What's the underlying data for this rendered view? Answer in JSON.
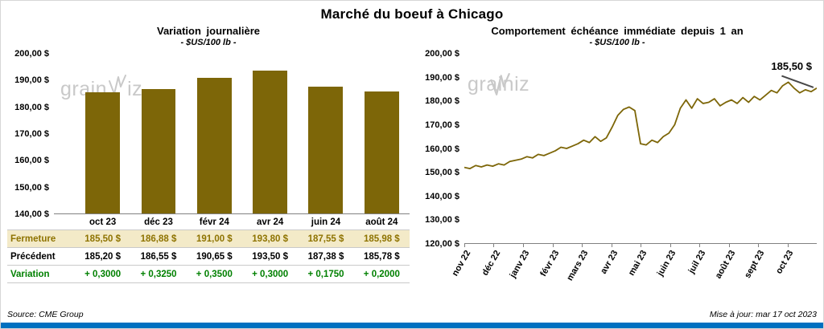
{
  "title": "Marché du boeuf à Chicago",
  "watermark": {
    "pre": "grain",
    "post": "iz"
  },
  "colors": {
    "bar": "#7D6608",
    "line": "#7D6608",
    "highlight_bg": "#F3EAC8",
    "highlight_text": "#8E7300",
    "positive": "#008000",
    "bottom_bar": "#0070C0",
    "watermark": "#C9C9C9"
  },
  "chart_data": [
    {
      "type": "bar",
      "title": "Variation journalière",
      "subtitle": "- $US/100 lb -",
      "categories": [
        "oct 23",
        "déc 23",
        "févr 24",
        "avr 24",
        "juin 24",
        "août 24"
      ],
      "values": [
        185.5,
        186.88,
        191.0,
        193.8,
        187.55,
        185.98
      ],
      "ylim": [
        140,
        200
      ],
      "yticks": [
        "200,00 $",
        "190,00 $",
        "180,00 $",
        "170,00 $",
        "160,00 $",
        "150,00 $",
        "140,00 $"
      ],
      "grid": false,
      "legend": "none"
    },
    {
      "type": "line",
      "title": "Comportement échéance immédiate depuis 1 an",
      "subtitle": "- $US/100 lb -",
      "x_labels": [
        "nov 22",
        "déc 22",
        "janv 23",
        "févr 23",
        "mars 23",
        "avr 23",
        "mai 23",
        "juin 23",
        "juil 23",
        "août 23",
        "sept 23",
        "oct 23"
      ],
      "values": [
        152.0,
        151.5,
        152.8,
        152.2,
        153.0,
        152.5,
        153.5,
        153.0,
        154.5,
        155.0,
        155.5,
        156.5,
        156.0,
        157.5,
        157.0,
        158.0,
        159.0,
        160.5,
        160.0,
        161.0,
        162.0,
        163.5,
        162.5,
        165.0,
        163.0,
        164.5,
        169.0,
        174.0,
        176.5,
        177.5,
        176.0,
        162.0,
        161.5,
        163.5,
        162.5,
        165.0,
        166.5,
        170.0,
        177.0,
        180.5,
        177.0,
        181.0,
        179.0,
        179.5,
        181.0,
        178.0,
        179.5,
        180.5,
        179.0,
        181.5,
        179.5,
        182.0,
        180.5,
        182.5,
        184.5,
        183.5,
        186.5,
        188.0,
        185.5,
        183.5,
        184.8,
        184.0,
        185.5
      ],
      "ylim": [
        120,
        200
      ],
      "yticks": [
        "200,00 $",
        "190,00 $",
        "180,00 $",
        "170,00 $",
        "160,00 $",
        "150,00 $",
        "140,00 $",
        "130,00 $",
        "120,00 $"
      ],
      "annotation": {
        "label": "185,50 $",
        "value": 185.5
      },
      "grid": false,
      "legend": "none"
    }
  ],
  "table": {
    "rows": [
      {
        "label": "Fermeture",
        "style": "highlight",
        "values": [
          "185,50 $",
          "186,88 $",
          "191,00 $",
          "193,80 $",
          "187,55 $",
          "185,98 $"
        ]
      },
      {
        "label": "Précédent",
        "style": "normal",
        "values": [
          "185,20 $",
          "186,55 $",
          "190,65 $",
          "193,50 $",
          "187,38 $",
          "185,78 $"
        ]
      },
      {
        "label": "Variation",
        "style": "positive",
        "values": [
          "+ 0,3000",
          "+ 0,3250",
          "+ 0,3500",
          "+ 0,3000",
          "+ 0,1750",
          "+ 0,2000"
        ]
      }
    ]
  },
  "footer": {
    "source": "Source: CME Group",
    "updated": "Mise à jour: mar 17 oct 2023"
  }
}
